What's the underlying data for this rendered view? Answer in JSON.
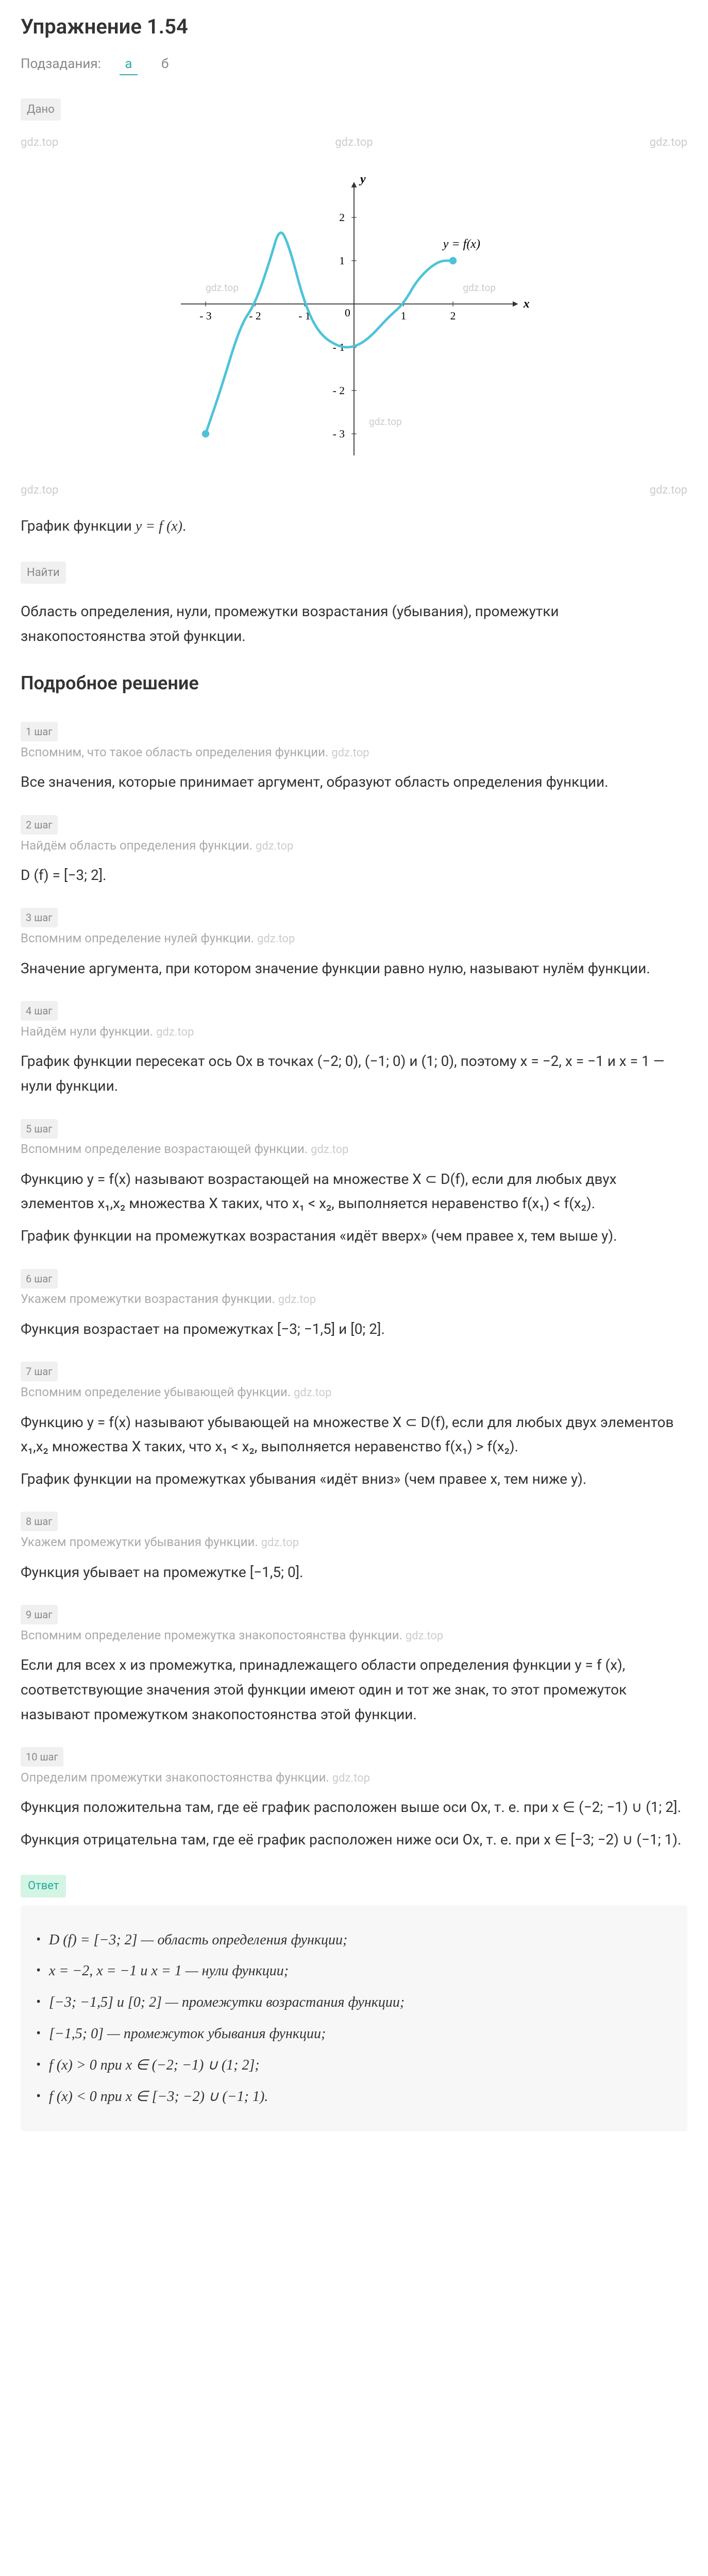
{
  "title": "Упражнение 1.54",
  "subtasks": {
    "label": "Подзадания:",
    "active": "а",
    "inactive": "б"
  },
  "given_tag": "Дано",
  "watermark": "gdz.top",
  "graph": {
    "x_range": [
      -3.5,
      3.5
    ],
    "y_range": [
      -3.5,
      3
    ],
    "x_ticks": [
      -3,
      -2,
      -1,
      1,
      2
    ],
    "y_ticks": [
      -3,
      -2,
      -1,
      1,
      2
    ],
    "x_label": "x",
    "y_label": "y",
    "curve_label": "y = f(x)",
    "curve_color": "#4dc3d9",
    "axis_color": "#333",
    "grid_color": "#ddd",
    "points": [
      [
        -3,
        -3
      ],
      [
        -2.7,
        -2
      ],
      [
        -2.3,
        -0.5
      ],
      [
        -2,
        0
      ],
      [
        -1.7,
        1
      ],
      [
        -1.5,
        1.8
      ],
      [
        -1.3,
        1.3
      ],
      [
        -1,
        0
      ],
      [
        -0.7,
        -0.7
      ],
      [
        -0.3,
        -1
      ],
      [
        0,
        -1
      ],
      [
        0.3,
        -0.8
      ],
      [
        0.7,
        -0.3
      ],
      [
        1,
        0
      ],
      [
        1.3,
        0.6
      ],
      [
        1.7,
        1
      ],
      [
        2,
        1
      ]
    ],
    "start_dot": [
      -3,
      -3
    ],
    "end_dot": [
      2,
      1
    ]
  },
  "caption": "График функции y = f (x).",
  "find_tag": "Найти",
  "find_text": "Область определения, нули, промежутки возрастания (убывания), промежутки знакопостоянства этой функции.",
  "solution_title": "Подробное решение",
  "steps": [
    {
      "badge": "1 шаг",
      "hint": "Вспомним, что такое область определения функции.",
      "text": "Все значения, которые принимает аргумент, образуют область определения функции."
    },
    {
      "badge": "2 шаг",
      "hint": "Найдём область определения функции.",
      "text": "D (f) = [−3; 2]."
    },
    {
      "badge": "3 шаг",
      "hint": "Вспомним определение нулей функции.",
      "text": "Значение аргумента, при котором значение функции равно нулю, называют нулём функции."
    },
    {
      "badge": "4 шаг",
      "hint": "Найдём нули функции.",
      "text": "График функции пересекат ось Ox в точках (−2; 0), (−1; 0) и (1; 0), поэтому x = −2, x = −1 и x = 1 — нули функции."
    },
    {
      "badge": "5 шаг",
      "hint": "Вспомним определение возрастающей функции.",
      "text": "Функцию y = f(x) называют возрастающей на множестве X ⊂ D(f), если для любых двух элементов x₁,x₂ множества X таких, что x₁ < x₂, выполняется неравенство f(x₁) < f(x₂).",
      "text2": "График функции на промежутках возрастания «идёт вверх» (чем правее x, тем выше y)."
    },
    {
      "badge": "6 шаг",
      "hint": "Укажем промежутки возрастания функции.",
      "text": "Функция возрастает на промежутках [−3; −1,5] и [0; 2]."
    },
    {
      "badge": "7 шаг",
      "hint": "Вспомним определение убывающей функции.",
      "text": "Функцию y = f(x) называют убывающей на множестве X ⊂ D(f), если для любых двух элементов x₁,x₂ множества X таких, что x₁ < x₂, выполняется неравенство f(x₁) > f(x₂).",
      "text2": "График функции на промежутках убывания «идёт вниз» (чем правее x, тем ниже y)."
    },
    {
      "badge": "8 шаг",
      "hint": "Укажем промежутки убывания функции.",
      "text": "Функция убывает на промежутке [−1,5; 0]."
    },
    {
      "badge": "9 шаг",
      "hint": "Вспомним определение промежутка знакопостоянства функции.",
      "text": "Если для всех x из промежутка, принадлежащего области определения функции y = f (x), соответствующие значения этой функции имеют один и тот же знак, то этот промежуток называют промежутком знакопостоянства этой функции."
    },
    {
      "badge": "10 шаг",
      "hint": "Определим промежутки знакопостоянства функции.",
      "text": "Функция положительна там, где её график расположен выше оси Ox, т. е. при x ∈ (−2; −1) ∪ (1; 2].",
      "text2": "Функция отрицательна там, где её график расположен ниже оси Ox, т. е. при x ∈ [−3; −2) ∪ (−1; 1)."
    }
  ],
  "answer_tag": "Ответ",
  "answers": [
    "D (f) = [−3; 2] — область определения функции;",
    "x = −2, x = −1 и x = 1 — нули функции;",
    "[−3; −1,5] и [0; 2] — промежутки возрастания функции;",
    "[−1,5; 0] — промежуток убывания функции;",
    "f (x) > 0 при x ∈ (−2; −1) ∪ (1; 2];",
    "f (x) < 0 при x ∈ [−3; −2) ∪ (−1; 1)."
  ]
}
